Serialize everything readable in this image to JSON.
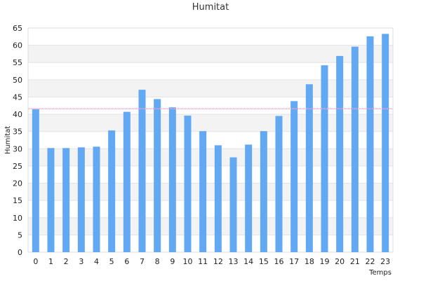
{
  "chart_data": {
    "type": "bar",
    "title": "Humitat",
    "xlabel": "Temps",
    "ylabel": "Humitat",
    "categories": [
      "0",
      "1",
      "2",
      "3",
      "4",
      "5",
      "6",
      "7",
      "8",
      "9",
      "10",
      "11",
      "12",
      "13",
      "14",
      "15",
      "16",
      "17",
      "18",
      "19",
      "20",
      "21",
      "22",
      "23"
    ],
    "series": [
      {
        "values": [
          41.5,
          30.2,
          30.2,
          30.4,
          30.6,
          35.3,
          40.7,
          47.1,
          44.4,
          42.0,
          39.6,
          35.1,
          31.0,
          27.5,
          31.2,
          35.1,
          39.5,
          43.8,
          48.7,
          54.2,
          56.9,
          59.6,
          62.6,
          63.3
        ],
        "color": "#62a8f2"
      }
    ],
    "ylim": [
      0,
      65
    ],
    "yticks": [
      0,
      5,
      10,
      15,
      20,
      25,
      30,
      35,
      40,
      45,
      50,
      55,
      60,
      65
    ],
    "reference_line": {
      "value": 41.6,
      "color": "#f4a3d0"
    },
    "grid": true,
    "band_color": "#f3f3f3"
  }
}
